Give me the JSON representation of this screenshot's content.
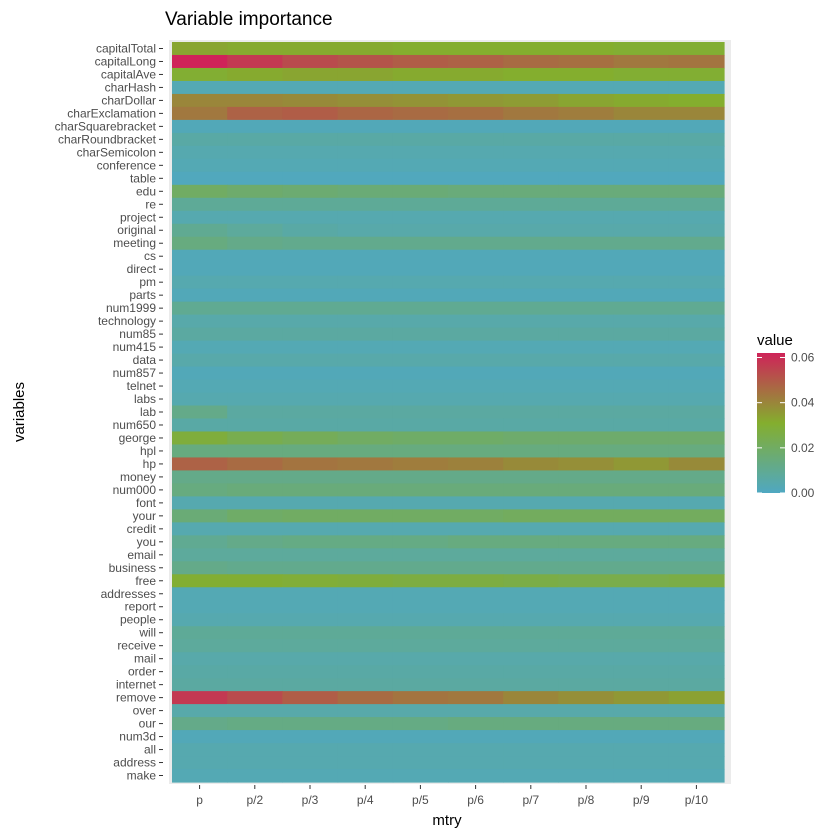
{
  "chart_data": {
    "type": "heatmap",
    "title": "Variable importance",
    "xlabel": "mtry",
    "ylabel": "variables",
    "x_categories": [
      "p",
      "p/2",
      "p/3",
      "p/4",
      "p/5",
      "p/6",
      "p/7",
      "p/8",
      "p/9",
      "p/10"
    ],
    "y_categories": [
      "capitalTotal",
      "capitalLong",
      "capitalAve",
      "charHash",
      "charDollar",
      "charExclamation",
      "charSquarebracket",
      "charRoundbracket",
      "charSemicolon",
      "conference",
      "table",
      "edu",
      "re",
      "project",
      "original",
      "meeting",
      "cs",
      "direct",
      "pm",
      "parts",
      "num1999",
      "technology",
      "num85",
      "num415",
      "data",
      "num857",
      "telnet",
      "labs",
      "lab",
      "num650",
      "george",
      "hpl",
      "hp",
      "money",
      "num000",
      "font",
      "your",
      "credit",
      "you",
      "email",
      "business",
      "free",
      "addresses",
      "report",
      "people",
      "will",
      "receive",
      "mail",
      "order",
      "internet",
      "remove",
      "over",
      "our",
      "num3d",
      "all",
      "address",
      "make"
    ],
    "rows": [
      {
        "variable": "capitalTotal",
        "values": [
          0.033,
          0.032,
          0.032,
          0.032,
          0.031,
          0.031,
          0.031,
          0.031,
          0.03,
          0.03
        ]
      },
      {
        "variable": "capitalLong",
        "values": [
          0.062,
          0.057,
          0.053,
          0.051,
          0.049,
          0.048,
          0.046,
          0.045,
          0.043,
          0.044
        ]
      },
      {
        "variable": "capitalAve",
        "values": [
          0.03,
          0.032,
          0.033,
          0.033,
          0.032,
          0.032,
          0.031,
          0.031,
          0.03,
          0.03
        ]
      },
      {
        "variable": "charHash",
        "values": [
          0.003,
          0.003,
          0.003,
          0.003,
          0.003,
          0.003,
          0.003,
          0.003,
          0.003,
          0.003
        ]
      },
      {
        "variable": "charDollar",
        "values": [
          0.04,
          0.04,
          0.039,
          0.038,
          0.037,
          0.036,
          0.035,
          0.033,
          0.032,
          0.031
        ]
      },
      {
        "variable": "charExclamation",
        "values": [
          0.043,
          0.048,
          0.049,
          0.047,
          0.046,
          0.045,
          0.043,
          0.042,
          0.04,
          0.04
        ]
      },
      {
        "variable": "charSquarebracket",
        "values": [
          0.002,
          0.002,
          0.002,
          0.002,
          0.002,
          0.002,
          0.002,
          0.002,
          0.002,
          0.002
        ]
      },
      {
        "variable": "charRoundbracket",
        "values": [
          0.006,
          0.006,
          0.006,
          0.006,
          0.006,
          0.006,
          0.006,
          0.006,
          0.006,
          0.006
        ]
      },
      {
        "variable": "charSemicolon",
        "values": [
          0.004,
          0.004,
          0.004,
          0.004,
          0.004,
          0.004,
          0.004,
          0.004,
          0.004,
          0.004
        ]
      },
      {
        "variable": "conference",
        "values": [
          0.003,
          0.003,
          0.003,
          0.003,
          0.003,
          0.003,
          0.003,
          0.003,
          0.003,
          0.003
        ]
      },
      {
        "variable": "table",
        "values": [
          0.001,
          0.001,
          0.001,
          0.001,
          0.001,
          0.001,
          0.001,
          0.001,
          0.001,
          0.001
        ]
      },
      {
        "variable": "edu",
        "values": [
          0.02,
          0.018,
          0.017,
          0.016,
          0.016,
          0.015,
          0.015,
          0.015,
          0.015,
          0.015
        ]
      },
      {
        "variable": "re",
        "values": [
          0.009,
          0.009,
          0.009,
          0.009,
          0.009,
          0.009,
          0.009,
          0.009,
          0.009,
          0.009
        ]
      },
      {
        "variable": "project",
        "values": [
          0.004,
          0.004,
          0.004,
          0.004,
          0.004,
          0.004,
          0.004,
          0.004,
          0.004,
          0.004
        ]
      },
      {
        "variable": "original",
        "values": [
          0.01,
          0.008,
          0.006,
          0.005,
          0.005,
          0.005,
          0.005,
          0.005,
          0.005,
          0.005
        ]
      },
      {
        "variable": "meeting",
        "values": [
          0.014,
          0.012,
          0.011,
          0.011,
          0.011,
          0.011,
          0.011,
          0.011,
          0.011,
          0.011
        ]
      },
      {
        "variable": "cs",
        "values": [
          0.002,
          0.002,
          0.002,
          0.002,
          0.002,
          0.002,
          0.002,
          0.002,
          0.002,
          0.002
        ]
      },
      {
        "variable": "direct",
        "values": [
          0.002,
          0.002,
          0.002,
          0.002,
          0.002,
          0.002,
          0.002,
          0.002,
          0.002,
          0.002
        ]
      },
      {
        "variable": "pm",
        "values": [
          0.004,
          0.004,
          0.004,
          0.004,
          0.004,
          0.004,
          0.004,
          0.004,
          0.004,
          0.004
        ]
      },
      {
        "variable": "parts",
        "values": [
          0.002,
          0.002,
          0.002,
          0.002,
          0.002,
          0.002,
          0.002,
          0.002,
          0.002,
          0.002
        ]
      },
      {
        "variable": "num1999",
        "values": [
          0.01,
          0.01,
          0.01,
          0.01,
          0.01,
          0.01,
          0.01,
          0.01,
          0.01,
          0.01
        ]
      },
      {
        "variable": "technology",
        "values": [
          0.005,
          0.005,
          0.005,
          0.005,
          0.005,
          0.005,
          0.005,
          0.005,
          0.005,
          0.005
        ]
      },
      {
        "variable": "num85",
        "values": [
          0.007,
          0.007,
          0.007,
          0.007,
          0.007,
          0.007,
          0.007,
          0.007,
          0.007,
          0.007
        ]
      },
      {
        "variable": "num415",
        "values": [
          0.003,
          0.003,
          0.003,
          0.003,
          0.003,
          0.003,
          0.003,
          0.003,
          0.003,
          0.003
        ]
      },
      {
        "variable": "data",
        "values": [
          0.005,
          0.005,
          0.005,
          0.005,
          0.005,
          0.005,
          0.005,
          0.005,
          0.005,
          0.005
        ]
      },
      {
        "variable": "num857",
        "values": [
          0.002,
          0.002,
          0.002,
          0.002,
          0.002,
          0.002,
          0.002,
          0.002,
          0.002,
          0.002
        ]
      },
      {
        "variable": "telnet",
        "values": [
          0.003,
          0.003,
          0.003,
          0.003,
          0.003,
          0.003,
          0.003,
          0.003,
          0.003,
          0.003
        ]
      },
      {
        "variable": "labs",
        "values": [
          0.004,
          0.004,
          0.004,
          0.004,
          0.004,
          0.004,
          0.004,
          0.004,
          0.004,
          0.004
        ]
      },
      {
        "variable": "lab",
        "values": [
          0.012,
          0.007,
          0.007,
          0.007,
          0.007,
          0.007,
          0.007,
          0.007,
          0.007,
          0.007
        ]
      },
      {
        "variable": "num650",
        "values": [
          0.006,
          0.006,
          0.006,
          0.006,
          0.006,
          0.006,
          0.006,
          0.006,
          0.006,
          0.006
        ]
      },
      {
        "variable": "george",
        "values": [
          0.028,
          0.024,
          0.022,
          0.02,
          0.019,
          0.019,
          0.018,
          0.018,
          0.018,
          0.018
        ]
      },
      {
        "variable": "hpl",
        "values": [
          0.014,
          0.014,
          0.014,
          0.014,
          0.014,
          0.014,
          0.014,
          0.014,
          0.014,
          0.014
        ]
      },
      {
        "variable": "hp",
        "values": [
          0.048,
          0.046,
          0.044,
          0.043,
          0.042,
          0.041,
          0.039,
          0.038,
          0.036,
          0.039
        ]
      },
      {
        "variable": "money",
        "values": [
          0.012,
          0.012,
          0.012,
          0.012,
          0.012,
          0.012,
          0.012,
          0.012,
          0.012,
          0.012
        ]
      },
      {
        "variable": "num000",
        "values": [
          0.014,
          0.015,
          0.015,
          0.015,
          0.015,
          0.015,
          0.015,
          0.015,
          0.015,
          0.015
        ]
      },
      {
        "variable": "font",
        "values": [
          0.004,
          0.004,
          0.004,
          0.004,
          0.004,
          0.004,
          0.004,
          0.004,
          0.004,
          0.004
        ]
      },
      {
        "variable": "your",
        "values": [
          0.016,
          0.019,
          0.02,
          0.02,
          0.02,
          0.02,
          0.021,
          0.021,
          0.021,
          0.021
        ]
      },
      {
        "variable": "credit",
        "values": [
          0.004,
          0.004,
          0.004,
          0.004,
          0.004,
          0.004,
          0.004,
          0.004,
          0.004,
          0.004
        ]
      },
      {
        "variable": "you",
        "values": [
          0.01,
          0.012,
          0.013,
          0.013,
          0.013,
          0.014,
          0.014,
          0.014,
          0.014,
          0.014
        ]
      },
      {
        "variable": "email",
        "values": [
          0.008,
          0.008,
          0.008,
          0.008,
          0.008,
          0.008,
          0.008,
          0.008,
          0.008,
          0.008
        ]
      },
      {
        "variable": "business",
        "values": [
          0.012,
          0.011,
          0.011,
          0.011,
          0.011,
          0.011,
          0.011,
          0.011,
          0.011,
          0.011
        ]
      },
      {
        "variable": "free",
        "values": [
          0.03,
          0.03,
          0.029,
          0.028,
          0.027,
          0.027,
          0.026,
          0.025,
          0.025,
          0.026
        ]
      },
      {
        "variable": "addresses",
        "values": [
          0.003,
          0.003,
          0.003,
          0.003,
          0.003,
          0.003,
          0.003,
          0.003,
          0.003,
          0.003
        ]
      },
      {
        "variable": "report",
        "values": [
          0.003,
          0.003,
          0.003,
          0.003,
          0.003,
          0.003,
          0.003,
          0.003,
          0.003,
          0.003
        ]
      },
      {
        "variable": "people",
        "values": [
          0.004,
          0.004,
          0.004,
          0.004,
          0.004,
          0.004,
          0.004,
          0.004,
          0.004,
          0.004
        ]
      },
      {
        "variable": "will",
        "values": [
          0.009,
          0.009,
          0.009,
          0.009,
          0.009,
          0.009,
          0.009,
          0.009,
          0.009,
          0.009
        ]
      },
      {
        "variable": "receive",
        "values": [
          0.008,
          0.008,
          0.008,
          0.008,
          0.008,
          0.008,
          0.008,
          0.008,
          0.008,
          0.008
        ]
      },
      {
        "variable": "mail",
        "values": [
          0.005,
          0.005,
          0.005,
          0.005,
          0.005,
          0.005,
          0.005,
          0.005,
          0.005,
          0.005
        ]
      },
      {
        "variable": "order",
        "values": [
          0.006,
          0.006,
          0.006,
          0.006,
          0.006,
          0.006,
          0.006,
          0.006,
          0.006,
          0.006
        ]
      },
      {
        "variable": "internet",
        "values": [
          0.007,
          0.007,
          0.007,
          0.007,
          0.007,
          0.007,
          0.007,
          0.007,
          0.007,
          0.007
        ]
      },
      {
        "variable": "remove",
        "values": [
          0.057,
          0.053,
          0.049,
          0.046,
          0.044,
          0.043,
          0.04,
          0.038,
          0.036,
          0.034
        ]
      },
      {
        "variable": "over",
        "values": [
          0.005,
          0.005,
          0.005,
          0.005,
          0.005,
          0.005,
          0.005,
          0.005,
          0.005,
          0.005
        ]
      },
      {
        "variable": "our",
        "values": [
          0.012,
          0.013,
          0.013,
          0.013,
          0.013,
          0.014,
          0.014,
          0.014,
          0.014,
          0.014
        ]
      },
      {
        "variable": "num3d",
        "values": [
          0.002,
          0.002,
          0.002,
          0.002,
          0.002,
          0.002,
          0.002,
          0.002,
          0.002,
          0.002
        ]
      },
      {
        "variable": "all",
        "values": [
          0.004,
          0.004,
          0.004,
          0.004,
          0.004,
          0.004,
          0.004,
          0.004,
          0.004,
          0.004
        ]
      },
      {
        "variable": "address",
        "values": [
          0.004,
          0.004,
          0.004,
          0.004,
          0.004,
          0.004,
          0.004,
          0.004,
          0.004,
          0.004
        ]
      },
      {
        "variable": "make",
        "values": [
          0.003,
          0.003,
          0.003,
          0.003,
          0.003,
          0.003,
          0.003,
          0.003,
          0.003,
          0.003
        ]
      }
    ],
    "legend": {
      "title": "value",
      "ticks": [
        "0.00",
        "0.02",
        "0.04",
        "0.06"
      ],
      "tick_values": [
        0.0,
        0.02,
        0.04,
        0.06
      ],
      "range": [
        0.0,
        0.062
      ],
      "placement": "right"
    },
    "colors": {
      "low": "#4fa8c2",
      "mid": "#84ae2e",
      "high": "#cf2359",
      "panel_background": "#ebebeb",
      "grid": "#ffffff"
    }
  }
}
